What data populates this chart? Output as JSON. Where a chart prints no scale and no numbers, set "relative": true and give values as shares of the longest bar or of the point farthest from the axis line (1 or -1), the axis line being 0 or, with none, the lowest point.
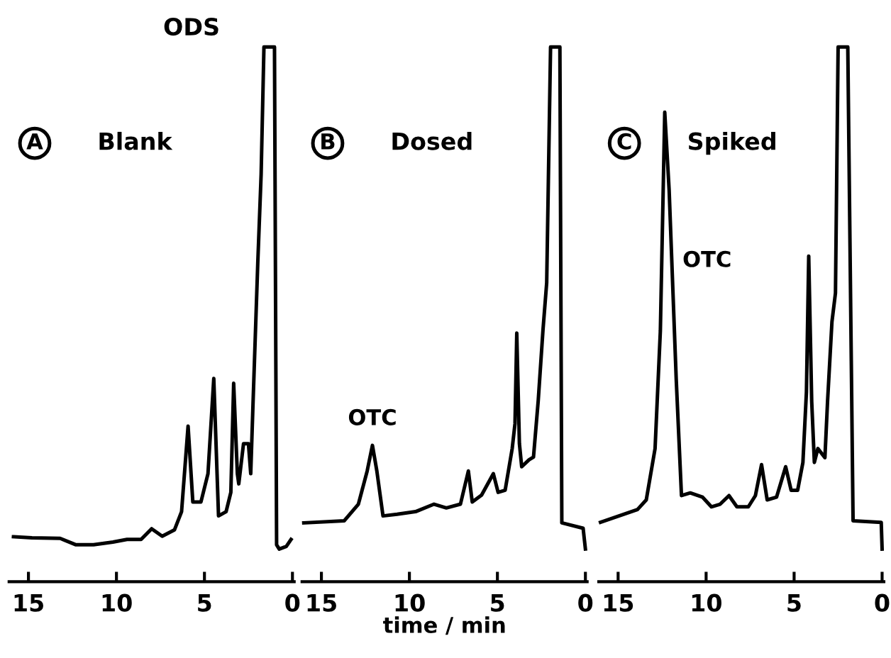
{
  "chart_data": [
    {
      "type": "line",
      "title": "ODS",
      "relative": true,
      "xlim": [
        16.1,
        -0.1
      ],
      "xticks": [
        15,
        10,
        5,
        0
      ],
      "annotations": [
        "A",
        "Blank"
      ],
      "x": [
        15.85,
        14.8,
        13.2,
        12.3,
        11.3,
        10.2,
        9.4,
        8.6,
        8.0,
        7.4,
        6.7,
        6.3,
        5.93,
        5.66,
        5.2,
        4.8,
        4.47,
        4.2,
        3.77,
        3.5,
        3.34,
        3.13,
        3.05,
        2.78,
        2.5,
        2.37,
        2.24,
        1.97,
        1.78,
        1.62,
        1.02,
        0.9,
        0.75,
        0.35,
        0.08
      ],
      "series": [
        {
          "color": "#000000",
          "values": [
            0.084,
            0.082,
            0.081,
            0.069,
            0.069,
            0.074,
            0.079,
            0.079,
            0.099,
            0.085,
            0.097,
            0.131,
            0.291,
            0.149,
            0.149,
            0.202,
            0.38,
            0.123,
            0.131,
            0.167,
            0.371,
            0.202,
            0.183,
            0.258,
            0.258,
            0.202,
            0.333,
            0.596,
            0.761,
            1.0,
            1.0,
            0.069,
            0.061,
            0.066,
            0.079
          ]
        }
      ]
    },
    {
      "type": "line",
      "xlabel": "time / min",
      "relative": true,
      "xlim": [
        16.1,
        -0.1
      ],
      "xticks": [
        15,
        10,
        5,
        0
      ],
      "annotations": [
        "B",
        "Dosed",
        {
          "text": "OTC",
          "x": 12.1,
          "y": 0.255
        }
      ],
      "x": [
        16.0,
        13.7,
        12.9,
        12.4,
        12.1,
        11.85,
        11.5,
        10.7,
        9.65,
        8.6,
        7.9,
        7.1,
        6.65,
        6.43,
        5.9,
        5.23,
        4.96,
        4.56,
        4.16,
        4.0,
        3.9,
        3.75,
        3.62,
        3.2,
        2.95,
        2.68,
        2.41,
        2.2,
        1.98,
        1.45,
        1.34,
        0.13,
        0.0
      ],
      "series": [
        {
          "color": "#000000",
          "values": [
            0.11,
            0.114,
            0.145,
            0.207,
            0.255,
            0.207,
            0.123,
            0.126,
            0.131,
            0.145,
            0.138,
            0.145,
            0.207,
            0.149,
            0.162,
            0.202,
            0.167,
            0.171,
            0.249,
            0.296,
            0.465,
            0.258,
            0.215,
            0.228,
            0.233,
            0.339,
            0.471,
            0.559,
            1.0,
            1.0,
            0.11,
            0.1,
            0.061
          ]
        }
      ]
    },
    {
      "type": "line",
      "relative": true,
      "xlim": [
        16.1,
        -0.1
      ],
      "xticks": [
        15,
        10,
        5,
        0
      ],
      "annotations": [
        "C",
        "Spiked",
        {
          "text": "OTC",
          "x": 11.9,
          "y": 0.6
        }
      ],
      "x": [
        16.0,
        13.9,
        13.4,
        12.9,
        12.6,
        12.35,
        12.1,
        11.7,
        11.4,
        10.9,
        10.2,
        9.7,
        9.2,
        8.7,
        8.25,
        7.6,
        7.2,
        6.85,
        6.53,
        6.0,
        5.48,
        5.17,
        4.8,
        4.5,
        4.3,
        4.17,
        4.0,
        3.85,
        3.65,
        3.25,
        3.1,
        2.85,
        2.65,
        2.5,
        1.95,
        1.65,
        0.05,
        0.0
      ],
      "series": [
        {
          "color": "#000000",
          "values": [
            0.111,
            0.135,
            0.153,
            0.249,
            0.469,
            0.878,
            0.732,
            0.38,
            0.161,
            0.166,
            0.158,
            0.14,
            0.145,
            0.161,
            0.14,
            0.14,
            0.161,
            0.219,
            0.153,
            0.158,
            0.215,
            0.171,
            0.171,
            0.223,
            0.355,
            0.609,
            0.337,
            0.223,
            0.249,
            0.232,
            0.337,
            0.486,
            0.54,
            1.0,
            1.0,
            0.114,
            0.111,
            0.061
          ]
        }
      ]
    }
  ]
}
